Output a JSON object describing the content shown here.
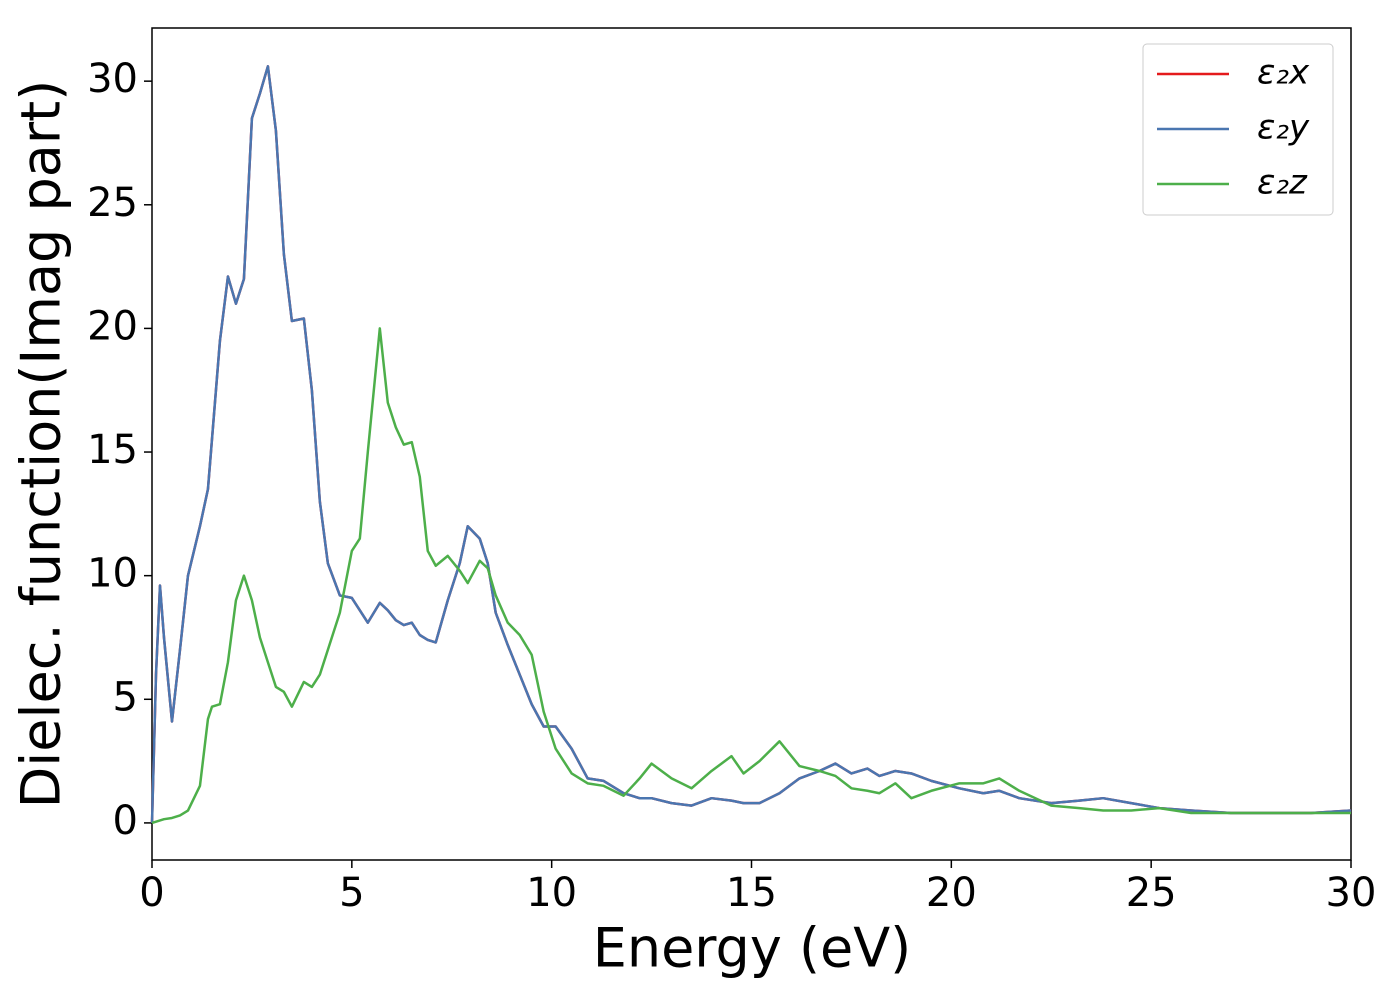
{
  "chart_data": {
    "type": "line",
    "xlabel": "Energy (eV)",
    "ylabel": "Dielec. function(Imag part)",
    "x": [
      0,
      0.1,
      0.2,
      0.3,
      0.5,
      0.7,
      0.9,
      1.2,
      1.4,
      1.5,
      1.7,
      1.9,
      2.1,
      2.3,
      2.5,
      2.7,
      2.9,
      3.1,
      3.3,
      3.5,
      3.8,
      4.0,
      4.2,
      4.4,
      4.7,
      5.0,
      5.2,
      5.4,
      5.7,
      5.9,
      6.1,
      6.3,
      6.5,
      6.7,
      6.9,
      7.1,
      7.4,
      7.7,
      7.9,
      8.2,
      8.4,
      8.6,
      8.9,
      9.2,
      9.5,
      9.8,
      10.1,
      10.5,
      10.9,
      11.3,
      11.8,
      12.2,
      12.5,
      13,
      13.5,
      14,
      14.5,
      14.8,
      15.2,
      15.7,
      16.2,
      16.7,
      17.1,
      17.5,
      17.9,
      18.2,
      18.6,
      19.0,
      19.5,
      20.2,
      20.8,
      21.2,
      21.7,
      22.5,
      23.2,
      23.8,
      24.5,
      25.2,
      26,
      27,
      28,
      29,
      30
    ],
    "series": [
      {
        "name": "ε₂x",
        "color": "#e41a1c",
        "values": [
          0,
          6,
          9.6,
          7.5,
          4.1,
          7,
          10,
          12,
          13.5,
          15.5,
          19.5,
          22.1,
          21,
          22,
          28.5,
          29.5,
          30.6,
          28,
          23,
          20.3,
          20.4,
          17.5,
          13,
          10.5,
          9.2,
          9.1,
          8.6,
          8.1,
          8.9,
          8.6,
          8.2,
          8,
          8.1,
          7.6,
          7.4,
          7.3,
          9,
          10.5,
          12,
          11.5,
          10.5,
          8.5,
          7.2,
          6,
          4.8,
          3.9,
          3.9,
          3,
          1.8,
          1.7,
          1.2,
          1,
          1,
          0.8,
          0.7,
          1,
          0.9,
          0.8,
          0.8,
          1.2,
          1.8,
          2.1,
          2.4,
          2,
          2.2,
          1.9,
          2.1,
          2,
          1.7,
          1.4,
          1.2,
          1.3,
          1,
          0.8,
          0.9,
          1,
          0.8,
          0.6,
          0.5,
          0.4,
          0.4,
          0.4,
          0.5
        ]
      },
      {
        "name": "ε₂y",
        "color": "#4a76b0",
        "values": [
          0,
          6,
          9.6,
          7.5,
          4.1,
          7,
          10,
          12,
          13.5,
          15.5,
          19.5,
          22.1,
          21,
          22,
          28.5,
          29.5,
          30.6,
          28,
          23,
          20.3,
          20.4,
          17.5,
          13,
          10.5,
          9.2,
          9.1,
          8.6,
          8.1,
          8.9,
          8.6,
          8.2,
          8,
          8.1,
          7.6,
          7.4,
          7.3,
          9,
          10.5,
          12,
          11.5,
          10.5,
          8.5,
          7.2,
          6,
          4.8,
          3.9,
          3.9,
          3,
          1.8,
          1.7,
          1.2,
          1,
          1,
          0.8,
          0.7,
          1,
          0.9,
          0.8,
          0.8,
          1.2,
          1.8,
          2.1,
          2.4,
          2,
          2.2,
          1.9,
          2.1,
          2,
          1.7,
          1.4,
          1.2,
          1.3,
          1,
          0.8,
          0.9,
          1,
          0.8,
          0.6,
          0.5,
          0.4,
          0.4,
          0.4,
          0.5
        ]
      },
      {
        "name": "ε₂z",
        "color": "#4daf4a",
        "values": [
          0,
          0.05,
          0.1,
          0.15,
          0.2,
          0.3,
          0.5,
          1.5,
          4.2,
          4.7,
          4.8,
          6.5,
          9,
          10,
          9,
          7.5,
          6.5,
          5.5,
          5.3,
          4.7,
          5.7,
          5.5,
          6,
          7,
          8.5,
          11,
          11.5,
          15,
          20,
          17,
          16,
          15.3,
          15.4,
          14,
          11,
          10.4,
          10.8,
          10.2,
          9.7,
          10.6,
          10.3,
          9.2,
          8.1,
          7.6,
          6.8,
          4.5,
          3,
          2,
          1.6,
          1.5,
          1.1,
          1.8,
          2.4,
          1.8,
          1.4,
          2.1,
          2.7,
          2,
          2.5,
          3.3,
          2.3,
          2.1,
          1.9,
          1.4,
          1.3,
          1.2,
          1.6,
          1,
          1.3,
          1.6,
          1.6,
          1.8,
          1.3,
          0.7,
          0.6,
          0.5,
          0.5,
          0.6,
          0.4,
          0.4,
          0.4,
          0.4,
          0.4
        ]
      }
    ],
    "xlim": [
      0,
      30
    ],
    "xticks": [
      0,
      5,
      10,
      15,
      20,
      25,
      30
    ],
    "ylim": [
      -1.5,
      32.15
    ],
    "yticks": [
      0,
      5,
      10,
      15,
      20,
      25,
      30
    ],
    "legend": "upper right",
    "grid": false
  }
}
